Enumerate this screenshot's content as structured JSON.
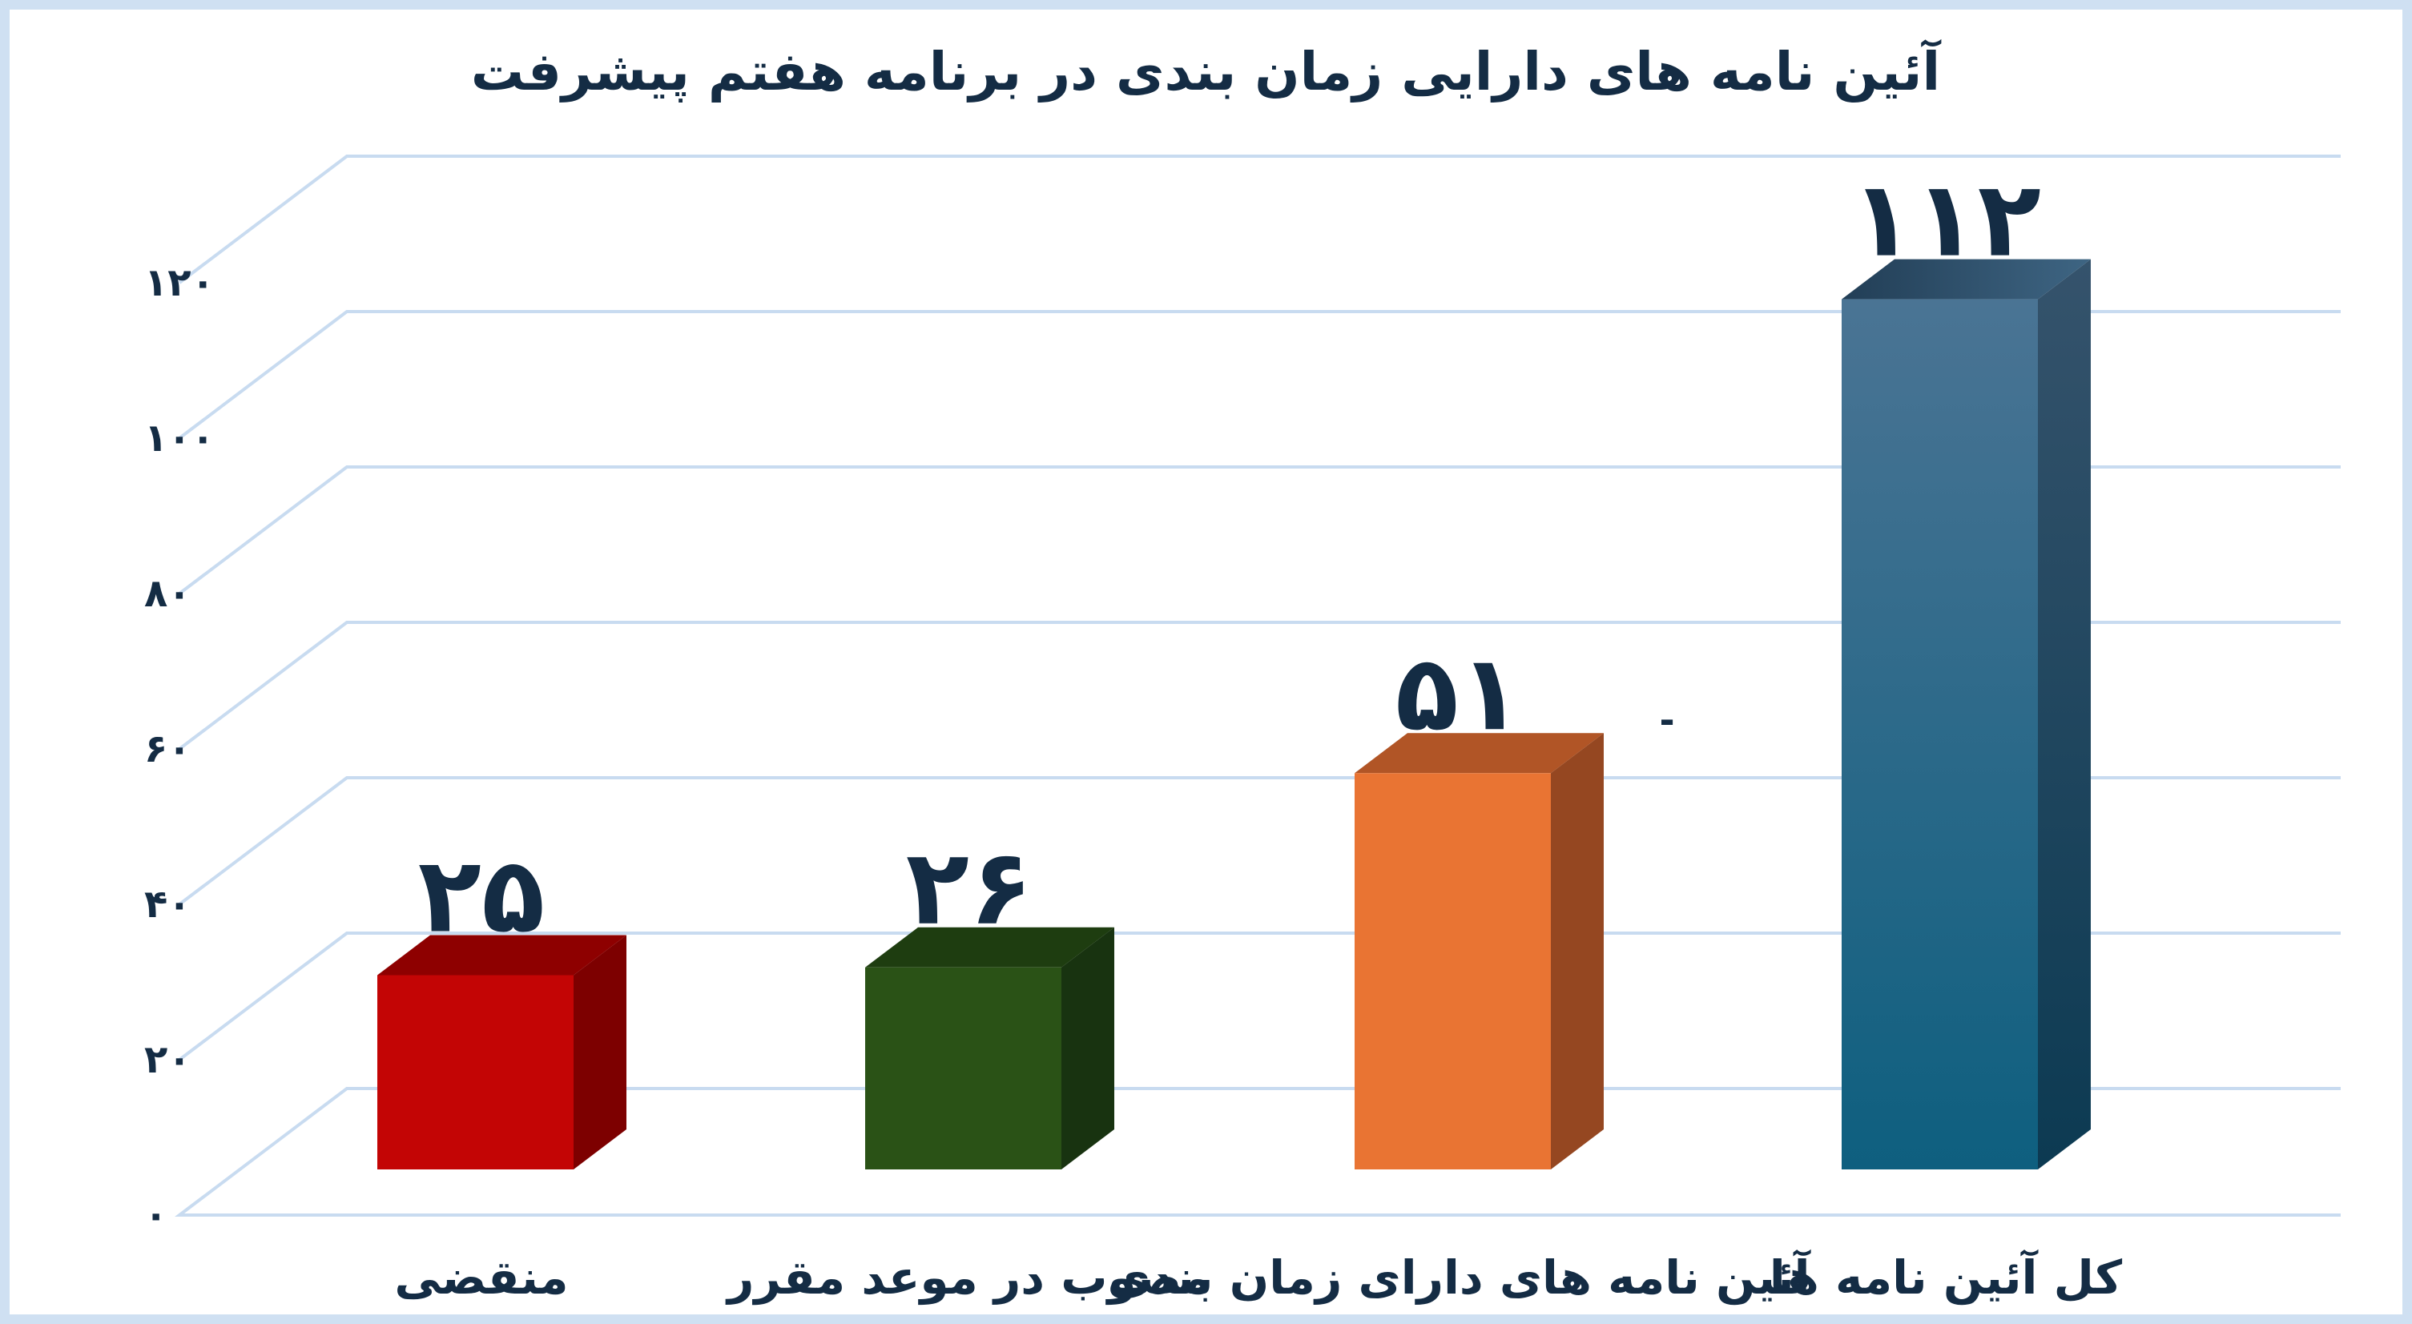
{
  "frame": {
    "border_color": "#CFE0F2",
    "background_color": "#FFFFFF"
  },
  "chart_data": {
    "type": "bar",
    "projection": "3d-column",
    "title": "آئین نامه های دارایی زمان بندی در برنامه هفتم پیشرفت",
    "title_color": "#142C44",
    "text_color": "#142C44",
    "gridline_color": "#C8DBF0",
    "grid": "on",
    "legend": "none",
    "x_axis": {
      "categories": [
        "منقضی",
        "مصوب در موعد مقرر",
        "آئین نامه های دارای زمان بندی",
        "کل آئین نامه ها"
      ]
    },
    "y_axis": {
      "range": [
        0,
        120
      ],
      "ticks": [
        0,
        20,
        40,
        60,
        80,
        100,
        120
      ],
      "tick_labels": [
        "۰",
        "۲۰",
        "۴۰",
        "۶۰",
        "۸۰",
        "۱۰۰",
        "۱۲۰"
      ]
    },
    "series": [
      {
        "name": "",
        "values": [
          25,
          26,
          51,
          112
        ],
        "value_labels": [
          "۲۵",
          "۲۶",
          "۵۱",
          "۱۱۲"
        ]
      }
    ],
    "bar_colors": [
      {
        "front": "#C30505",
        "top": "#8E0000",
        "side": "#7D0000"
      },
      {
        "front": "#2A5216",
        "top": "#1E3D10",
        "side": "#183310"
      },
      {
        "front": "#E97433",
        "top": "#B15526",
        "side": "#954721"
      },
      {
        "front": [
          "#4A7494",
          "#0E5F7F"
        ],
        "top": [
          "#223E56",
          "#3E6583"
        ],
        "side": [
          "#35536C",
          "#0C3A52"
        ]
      }
    ],
    "annotations": [
      {
        "text": "-",
        "x": 2081,
        "y": 915
      }
    ]
  }
}
